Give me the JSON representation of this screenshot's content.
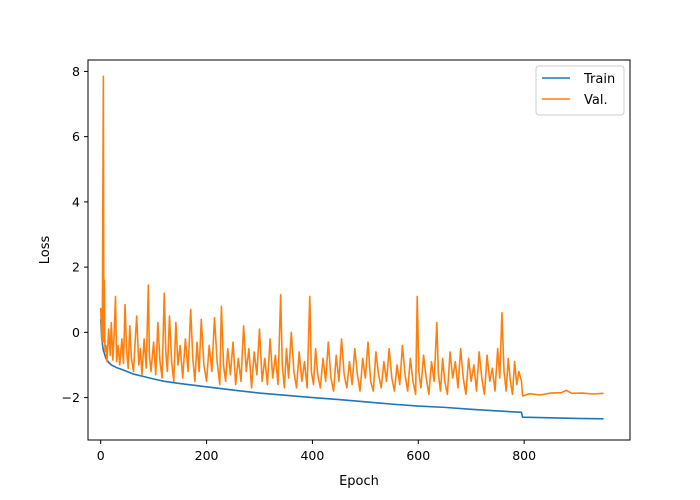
{
  "chart_data": {
    "type": "line",
    "title": "",
    "xlabel": "Epoch",
    "ylabel": "Loss",
    "xlim": [
      -24,
      1000
    ],
    "ylim": [
      -3.3,
      8.35
    ],
    "xticks": [
      0,
      200,
      400,
      600,
      800
    ],
    "yticks": [
      -2,
      0,
      2,
      4,
      6,
      8
    ],
    "grid": false,
    "legend_position": "top-right",
    "series": [
      {
        "name": "Train",
        "color": "#1f77b4",
        "points": [
          [
            0,
            0.4
          ],
          [
            2,
            -0.2
          ],
          [
            5,
            -0.55
          ],
          [
            10,
            -0.8
          ],
          [
            15,
            -0.92
          ],
          [
            20,
            -1.0
          ],
          [
            30,
            -1.08
          ],
          [
            40,
            -1.14
          ],
          [
            50,
            -1.2
          ],
          [
            60,
            -1.27
          ],
          [
            80,
            -1.35
          ],
          [
            100,
            -1.43
          ],
          [
            120,
            -1.5
          ],
          [
            150,
            -1.57
          ],
          [
            200,
            -1.67
          ],
          [
            250,
            -1.77
          ],
          [
            300,
            -1.86
          ],
          [
            350,
            -1.93
          ],
          [
            400,
            -2.0
          ],
          [
            450,
            -2.06
          ],
          [
            500,
            -2.13
          ],
          [
            550,
            -2.2
          ],
          [
            600,
            -2.26
          ],
          [
            650,
            -2.3
          ],
          [
            700,
            -2.36
          ],
          [
            750,
            -2.41
          ],
          [
            795,
            -2.45
          ],
          [
            797,
            -2.6
          ],
          [
            850,
            -2.62
          ],
          [
            900,
            -2.64
          ],
          [
            950,
            -2.65
          ]
        ]
      },
      {
        "name": "Val.",
        "color": "#ff7f0e",
        "points": [
          [
            0,
            0.75
          ],
          [
            2,
            -0.1
          ],
          [
            3,
            -0.3
          ],
          [
            5,
            7.85
          ],
          [
            6,
            -0.3
          ],
          [
            7,
            1.6
          ],
          [
            8,
            -0.6
          ],
          [
            10,
            -0.4
          ],
          [
            12,
            -0.9
          ],
          [
            15,
            0.1
          ],
          [
            18,
            -0.7
          ],
          [
            20,
            0.3
          ],
          [
            23,
            -0.85
          ],
          [
            25,
            -0.2
          ],
          [
            28,
            1.1
          ],
          [
            30,
            -0.9
          ],
          [
            33,
            -0.4
          ],
          [
            36,
            -1.0
          ],
          [
            40,
            -0.2
          ],
          [
            43,
            -0.95
          ],
          [
            46,
            0.85
          ],
          [
            49,
            -0.6
          ],
          [
            52,
            -1.1
          ],
          [
            55,
            0.2
          ],
          [
            58,
            -0.8
          ],
          [
            62,
            -1.2
          ],
          [
            65,
            -0.3
          ],
          [
            68,
            0.5
          ],
          [
            72,
            -1.0
          ],
          [
            75,
            -0.5
          ],
          [
            78,
            -1.3
          ],
          [
            82,
            -0.2
          ],
          [
            86,
            -1.1
          ],
          [
            90,
            1.45
          ],
          [
            92,
            -0.7
          ],
          [
            95,
            -1.2
          ],
          [
            100,
            -0.3
          ],
          [
            104,
            -1.3
          ],
          [
            108,
            0.3
          ],
          [
            112,
            -0.9
          ],
          [
            116,
            -1.4
          ],
          [
            120,
            1.2
          ],
          [
            123,
            -0.6
          ],
          [
            126,
            -1.2
          ],
          [
            130,
            0.5
          ],
          [
            134,
            -0.9
          ],
          [
            138,
            -1.5
          ],
          [
            142,
            0.3
          ],
          [
            146,
            -1.0
          ],
          [
            150,
            -0.4
          ],
          [
            155,
            -1.4
          ],
          [
            160,
            -0.2
          ],
          [
            165,
            -1.2
          ],
          [
            170,
            0.7
          ],
          [
            174,
            -0.8
          ],
          [
            178,
            -1.5
          ],
          [
            182,
            -0.3
          ],
          [
            186,
            -1.2
          ],
          [
            190,
            0.4
          ],
          [
            195,
            -1.0
          ],
          [
            200,
            -1.5
          ],
          [
            205,
            -0.4
          ],
          [
            210,
            -1.2
          ],
          [
            215,
            0.45
          ],
          [
            220,
            -0.9
          ],
          [
            225,
            -1.6
          ],
          [
            228,
            0.8
          ],
          [
            232,
            -1.0
          ],
          [
            236,
            -1.5
          ],
          [
            240,
            -0.5
          ],
          [
            245,
            -1.3
          ],
          [
            250,
            -0.3
          ],
          [
            255,
            -1.6
          ],
          [
            260,
            -0.8
          ],
          [
            265,
            -1.5
          ],
          [
            270,
            0.2
          ],
          [
            275,
            -1.2
          ],
          [
            280,
            -0.5
          ],
          [
            285,
            -1.7
          ],
          [
            290,
            -0.6
          ],
          [
            295,
            -1.3
          ],
          [
            300,
            0.1
          ],
          [
            305,
            -1.5
          ],
          [
            310,
            -0.8
          ],
          [
            315,
            -1.6
          ],
          [
            320,
            -0.2
          ],
          [
            325,
            -1.4
          ],
          [
            330,
            -0.7
          ],
          [
            335,
            -1.6
          ],
          [
            340,
            1.15
          ],
          [
            343,
            -1.0
          ],
          [
            347,
            -1.7
          ],
          [
            351,
            -0.5
          ],
          [
            355,
            -1.4
          ],
          [
            360,
            0.0
          ],
          [
            365,
            -1.2
          ],
          [
            370,
            -1.7
          ],
          [
            375,
            -0.6
          ],
          [
            380,
            -1.5
          ],
          [
            385,
            -0.9
          ],
          [
            390,
            -1.7
          ],
          [
            395,
            1.1
          ],
          [
            398,
            -1.2
          ],
          [
            402,
            -1.6
          ],
          [
            406,
            -0.5
          ],
          [
            410,
            -1.3
          ],
          [
            415,
            -1.7
          ],
          [
            420,
            -0.8
          ],
          [
            425,
            -1.5
          ],
          [
            430,
            -0.3
          ],
          [
            435,
            -1.4
          ],
          [
            440,
            -1.8
          ],
          [
            445,
            -0.7
          ],
          [
            450,
            -1.5
          ],
          [
            455,
            -0.2
          ],
          [
            460,
            -1.3
          ],
          [
            465,
            -1.7
          ],
          [
            470,
            -0.9
          ],
          [
            475,
            -1.6
          ],
          [
            480,
            -0.5
          ],
          [
            485,
            -1.3
          ],
          [
            490,
            -1.8
          ],
          [
            495,
            -0.8
          ],
          [
            500,
            -1.4
          ],
          [
            505,
            -0.3
          ],
          [
            510,
            -1.5
          ],
          [
            515,
            -1.8
          ],
          [
            520,
            -0.6
          ],
          [
            525,
            -1.3
          ],
          [
            530,
            -1.7
          ],
          [
            535,
            -0.9
          ],
          [
            540,
            -1.5
          ],
          [
            545,
            -0.5
          ],
          [
            550,
            -1.4
          ],
          [
            555,
            -1.8
          ],
          [
            560,
            -1.0
          ],
          [
            565,
            -1.6
          ],
          [
            570,
            -0.4
          ],
          [
            575,
            -1.3
          ],
          [
            580,
            -1.8
          ],
          [
            585,
            -0.8
          ],
          [
            590,
            -1.5
          ],
          [
            595,
            -1.9
          ],
          [
            598,
            1.1
          ],
          [
            601,
            -1.2
          ],
          [
            605,
            -1.7
          ],
          [
            610,
            -0.7
          ],
          [
            615,
            -1.4
          ],
          [
            620,
            -1.9
          ],
          [
            625,
            -0.9
          ],
          [
            630,
            -1.5
          ],
          [
            635,
            0.3
          ],
          [
            638,
            -1.3
          ],
          [
            642,
            -1.8
          ],
          [
            646,
            -0.8
          ],
          [
            650,
            -1.5
          ],
          [
            655,
            -1.9
          ],
          [
            660,
            -0.6
          ],
          [
            665,
            -1.4
          ],
          [
            670,
            -0.9
          ],
          [
            675,
            -1.7
          ],
          [
            680,
            -0.5
          ],
          [
            685,
            -1.4
          ],
          [
            690,
            -1.9
          ],
          [
            695,
            -0.8
          ],
          [
            700,
            -1.5
          ],
          [
            705,
            -1.0
          ],
          [
            710,
            -1.8
          ],
          [
            715,
            -0.6
          ],
          [
            720,
            -1.4
          ],
          [
            725,
            -1.9
          ],
          [
            730,
            -0.7
          ],
          [
            735,
            -1.5
          ],
          [
            740,
            -1.1
          ],
          [
            745,
            -1.8
          ],
          [
            750,
            -0.5
          ],
          [
            754,
            -1.4
          ],
          [
            758,
            0.6
          ],
          [
            762,
            -1.2
          ],
          [
            766,
            -1.8
          ],
          [
            770,
            -0.8
          ],
          [
            774,
            -1.5
          ],
          [
            778,
            -1.9
          ],
          [
            782,
            -0.9
          ],
          [
            786,
            -1.6
          ],
          [
            790,
            -1.2
          ],
          [
            795,
            -1.5
          ],
          [
            797,
            -1.95
          ],
          [
            810,
            -1.88
          ],
          [
            830,
            -1.92
          ],
          [
            850,
            -1.86
          ],
          [
            870,
            -1.85
          ],
          [
            880,
            -1.78
          ],
          [
            890,
            -1.87
          ],
          [
            910,
            -1.86
          ],
          [
            930,
            -1.89
          ],
          [
            950,
            -1.87
          ]
        ]
      }
    ]
  }
}
